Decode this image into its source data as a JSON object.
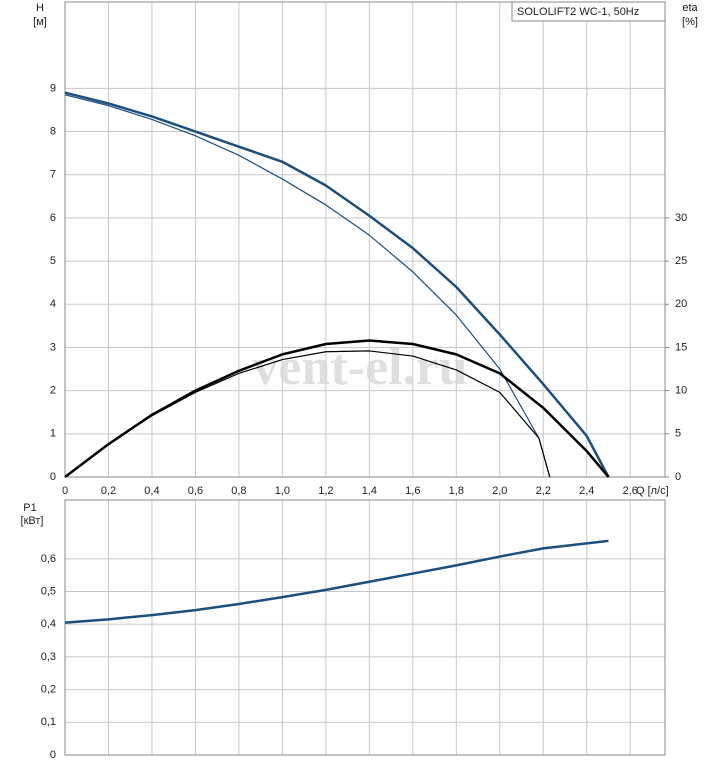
{
  "watermark": "vent-el.ru",
  "chart_data": [
    {
      "type": "line",
      "title": "SOLOLIFT2 WC-1, 50Hz",
      "y_label": "H",
      "y_unit": "[м]",
      "y2_label": "eta",
      "y2_unit": "[%]",
      "x_label": "Q [л/с]",
      "xlim": [
        0,
        2.76
      ],
      "xticks": [
        0,
        {
          "value": 0.2,
          "label": "0,2"
        },
        {
          "value": 0.4,
          "label": "0,4"
        },
        {
          "value": 0.6,
          "label": "0,6"
        },
        {
          "value": 0.8,
          "label": "0,8"
        },
        {
          "value": 1.0,
          "label": "1,0"
        },
        {
          "value": 1.2,
          "label": "1,2"
        },
        {
          "value": 1.4,
          "label": "1,4"
        },
        {
          "value": 1.6,
          "label": "1,6"
        },
        {
          "value": 1.8,
          "label": "1,8"
        },
        {
          "value": 2.0,
          "label": "2,0"
        },
        {
          "value": 2.2,
          "label": "2,2"
        },
        {
          "value": 2.4,
          "label": "2,4"
        },
        {
          "value": 2.6,
          "label": "2,6"
        }
      ],
      "ylim": [
        0,
        11
      ],
      "yticks": [
        0,
        1,
        2,
        3,
        4,
        5,
        6,
        7,
        8,
        9
      ],
      "y2lim": [
        0,
        55
      ],
      "y2ticks": [
        0,
        5,
        10,
        15,
        20,
        25,
        30
      ],
      "grid": true,
      "series": [
        {
          "color": "#1c4f7c",
          "line_width": 2.5,
          "x": [
            0,
            0.2,
            0.4,
            0.6,
            0.8,
            1.0,
            1.2,
            1.4,
            1.6,
            1.8,
            2.0,
            2.2,
            2.4,
            2.5
          ],
          "values": [
            8.9,
            8.65,
            8.35,
            8.0,
            7.65,
            7.3,
            6.75,
            6.05,
            5.3,
            4.4,
            3.3,
            2.15,
            0.95,
            0
          ]
        },
        {
          "color": "#1c4f7c",
          "line_width": 1.2,
          "x": [
            0,
            0.2,
            0.4,
            0.6,
            0.8,
            1.0,
            1.2,
            1.4,
            1.6,
            1.8,
            2.0,
            2.18,
            2.23
          ],
          "values": [
            8.85,
            8.6,
            8.28,
            7.9,
            7.45,
            6.9,
            6.3,
            5.6,
            4.75,
            3.75,
            2.5,
            0.9,
            0
          ]
        },
        {
          "color": "#000000",
          "line_width": 2.5,
          "axis": "y2",
          "x": [
            0,
            0.2,
            0.4,
            0.6,
            0.8,
            1.0,
            1.2,
            1.4,
            1.6,
            1.8,
            2.0,
            2.2,
            2.4,
            2.5
          ],
          "values": [
            0,
            3.8,
            7.2,
            10.0,
            12.3,
            14.2,
            15.4,
            15.8,
            15.4,
            14.2,
            12.0,
            8.0,
            3.0,
            0
          ]
        },
        {
          "color": "#000000",
          "line_width": 1.2,
          "axis": "y2",
          "x": [
            0,
            0.2,
            0.4,
            0.6,
            0.8,
            1.0,
            1.2,
            1.4,
            1.6,
            1.8,
            2.0,
            2.18,
            2.23
          ],
          "values": [
            0,
            3.8,
            7.1,
            9.8,
            12.0,
            13.6,
            14.5,
            14.6,
            14.0,
            12.4,
            9.8,
            4.5,
            0
          ]
        }
      ]
    },
    {
      "type": "line",
      "y_label": "P1",
      "y_unit": "[кВт]",
      "xlim": [
        0,
        2.76
      ],
      "ylim": [
        0,
        0.78
      ],
      "yticks": [
        0,
        {
          "value": 0.1,
          "label": "0,1"
        },
        {
          "value": 0.2,
          "label": "0,2"
        },
        {
          "value": 0.3,
          "label": "0,3"
        },
        {
          "value": 0.4,
          "label": "0,4"
        },
        {
          "value": 0.5,
          "label": "0,5"
        },
        {
          "value": 0.6,
          "label": "0,6"
        }
      ],
      "grid": true,
      "series": [
        {
          "color": "#1c4f7c",
          "line_width": 2.5,
          "x": [
            0,
            0.2,
            0.4,
            0.6,
            0.8,
            1.0,
            1.2,
            1.4,
            1.6,
            1.8,
            2.0,
            2.2,
            2.5
          ],
          "values": [
            0.405,
            0.415,
            0.428,
            0.443,
            0.462,
            0.483,
            0.505,
            0.53,
            0.555,
            0.58,
            0.607,
            0.632,
            0.655
          ]
        }
      ]
    }
  ]
}
